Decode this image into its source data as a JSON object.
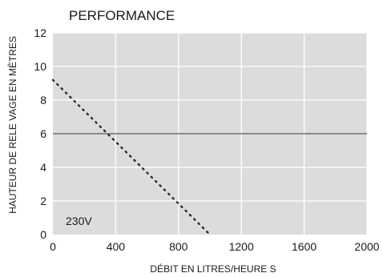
{
  "chart_data": {
    "type": "line",
    "title": "PERFORMANCE",
    "xlabel": "DÉBIT EN LITRES/HEURE S",
    "ylabel": "HAUTEUR DE RELE VAGE EN MÈTRES",
    "xlim": [
      0,
      2000
    ],
    "ylim": [
      0,
      12
    ],
    "xticks": [
      0,
      400,
      800,
      1200,
      1600,
      2000
    ],
    "yticks": [
      0,
      2,
      4,
      6,
      8,
      10,
      12
    ],
    "grid": true,
    "annotation": "230V",
    "series": [
      {
        "style": "dotted",
        "x": [
          0,
          1000
        ],
        "y": [
          9.2,
          0
        ]
      }
    ],
    "reference_line": {
      "y": 6
    },
    "colors": {
      "plot_bg": "#dcdcdc",
      "grid": "#ffffff",
      "line": "#2a2a2a",
      "reference": "#6e6e6e"
    }
  }
}
